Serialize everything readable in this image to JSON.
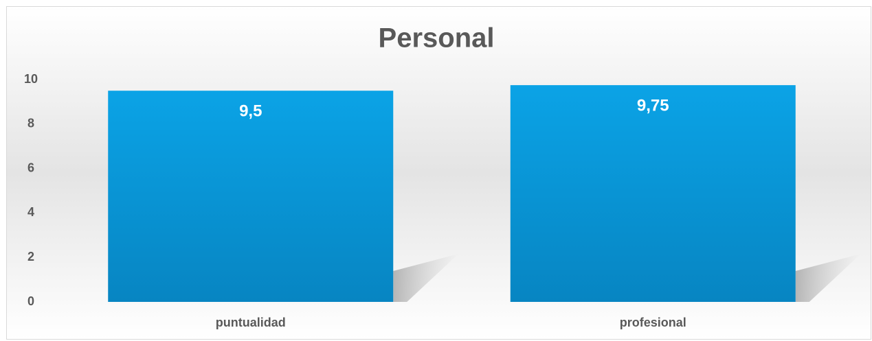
{
  "chart_data": {
    "type": "bar",
    "title": "Personal",
    "categories": [
      "puntualidad",
      "profesional"
    ],
    "values": [
      9.5,
      9.75
    ],
    "value_labels": [
      "9,5",
      "9,75"
    ],
    "color": "#0b9bde",
    "ylim": [
      0,
      10
    ],
    "yticks": [
      0,
      2,
      4,
      6,
      8,
      10
    ],
    "grid": false
  }
}
